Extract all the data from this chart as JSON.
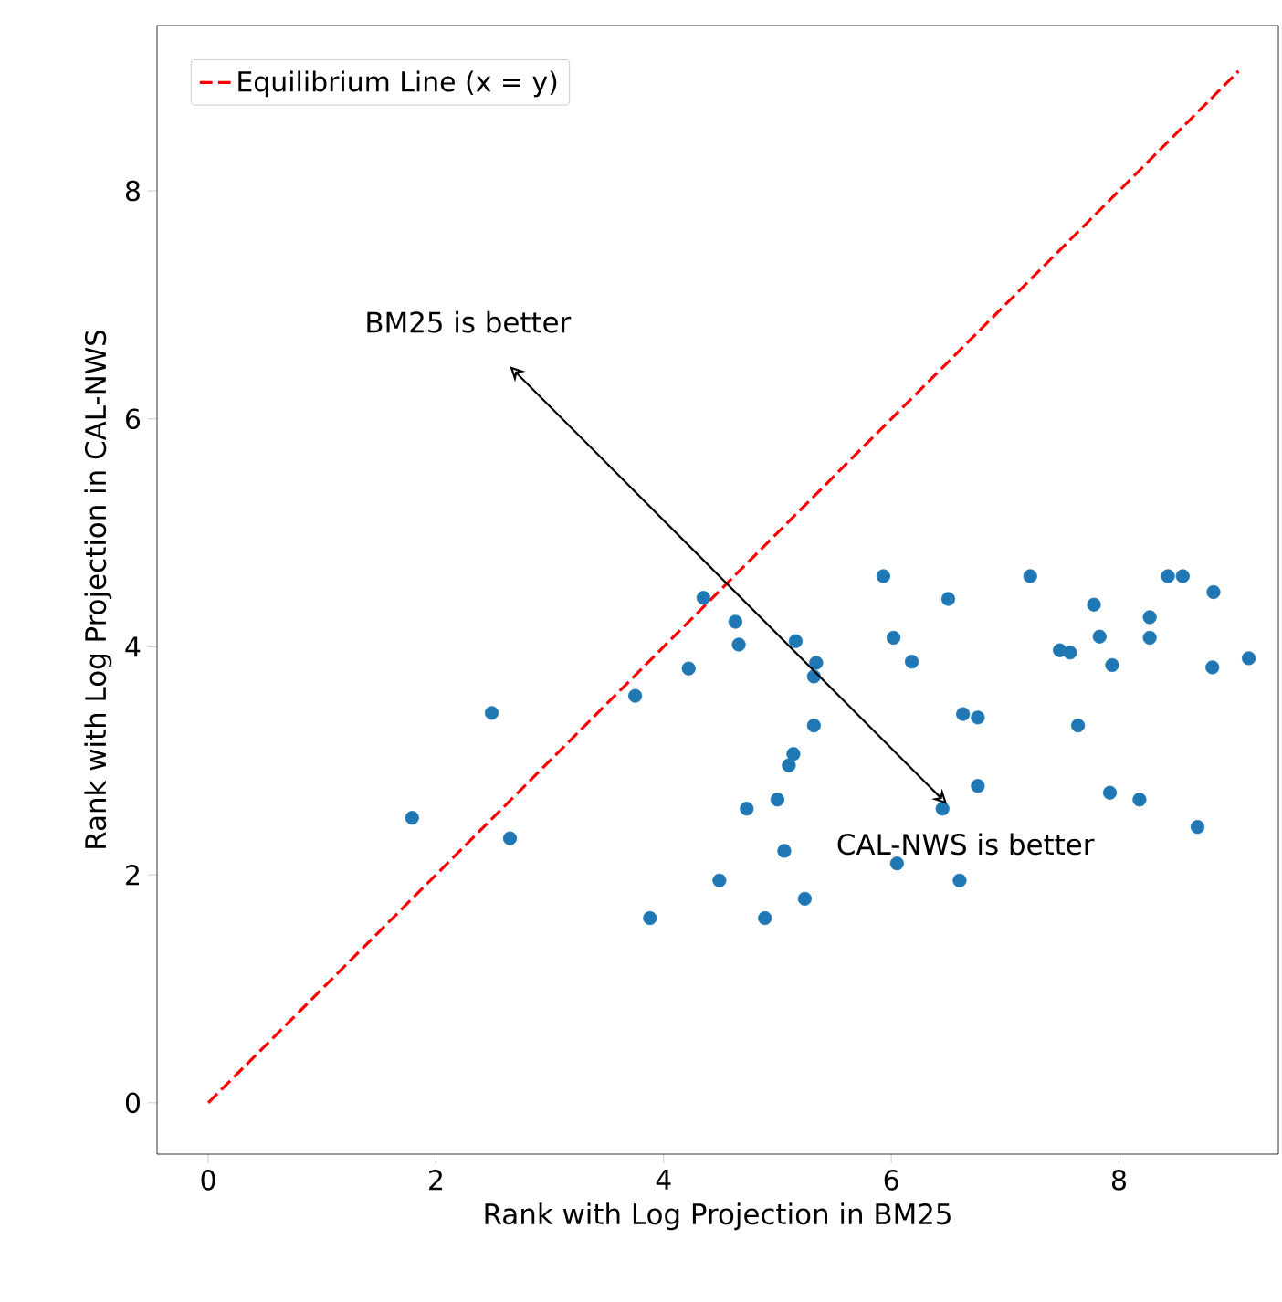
{
  "chart_data": {
    "type": "scatter",
    "xlabel": "Rank with Log Projection in BM25",
    "ylabel": "Rank with Log Projection in CAL-NWS",
    "xlim": [
      -0.45,
      9.4
    ],
    "ylim": [
      -0.45,
      9.45
    ],
    "xticks": [
      0,
      2,
      4,
      6,
      8
    ],
    "yticks": [
      0,
      2,
      4,
      6,
      8
    ],
    "grid": false,
    "legend": "top left",
    "annotations": [
      "BM25 is better",
      "CAL-NWS is better"
    ],
    "series": [
      {
        "type": "scatter",
        "marker": "circle",
        "color": "#1f77b4",
        "x": [
          1.79,
          2.49,
          2.65,
          3.75,
          3.88,
          4.22,
          4.35,
          4.49,
          4.63,
          4.66,
          4.73,
          5.0,
          5.1,
          5.14,
          5.16,
          5.32,
          5.34,
          5.32,
          4.89,
          5.24,
          5.06,
          5.93,
          6.5,
          7.22,
          8.43,
          8.56,
          8.83,
          7.78,
          8.27,
          6.02,
          6.18,
          7.48,
          7.57,
          7.83,
          8.27,
          7.94,
          8.82,
          9.14,
          6.63,
          6.76,
          7.64,
          6.76,
          7.92,
          8.18,
          6.45,
          8.69,
          6.05,
          6.6
        ],
        "values": [
          2.5,
          3.42,
          2.32,
          3.57,
          1.62,
          3.81,
          4.43,
          1.95,
          4.22,
          4.02,
          2.58,
          2.66,
          2.96,
          3.06,
          4.05,
          3.74,
          3.86,
          3.31,
          1.62,
          1.79,
          2.21,
          4.62,
          4.42,
          4.62,
          4.62,
          4.62,
          4.48,
          4.37,
          4.26,
          4.08,
          3.87,
          3.97,
          3.95,
          4.09,
          4.08,
          3.84,
          3.82,
          3.9,
          3.41,
          3.38,
          3.31,
          2.78,
          2.72,
          2.66,
          2.58,
          2.42,
          2.1,
          1.95
        ]
      },
      {
        "type": "line",
        "name": "Equilibrium Line (x = y)",
        "color": "#ff0000",
        "line_style": "dashed",
        "x": [
          0,
          9.05
        ],
        "values": [
          0,
          9.05
        ]
      }
    ]
  }
}
